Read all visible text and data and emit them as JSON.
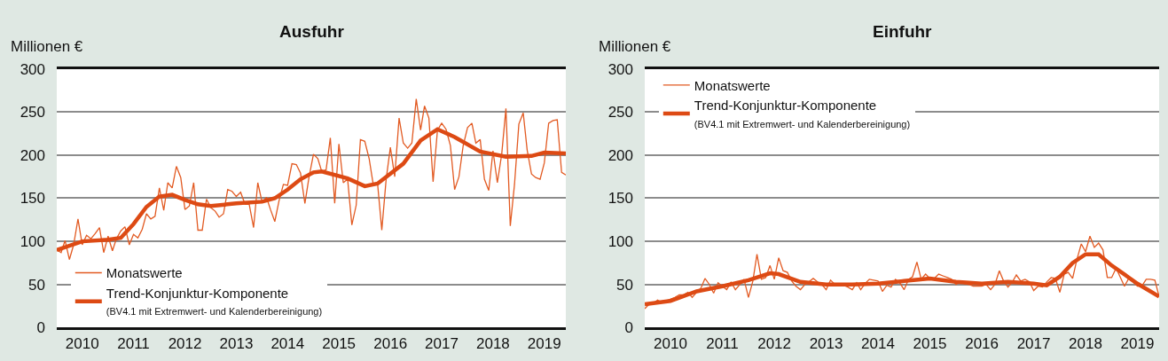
{
  "chart_data": [
    {
      "type": "line",
      "title": "Ausfuhr",
      "ylabel": "Millionen €",
      "legend": "bottom left",
      "grid": "y",
      "marker": "none",
      "line_style": "solid",
      "xlim": [
        "2010-01",
        "2019-12"
      ],
      "ylim": [
        0,
        300
      ],
      "yticks": [
        0,
        50,
        100,
        150,
        200,
        250,
        300
      ],
      "xticks": [
        {
          "value": "2010-07",
          "label": "2010"
        },
        {
          "value": "2011-07",
          "label": "2011"
        },
        {
          "value": "2012-07",
          "label": "2012"
        },
        {
          "value": "2013-07",
          "label": "2013"
        },
        {
          "value": "2014-07",
          "label": "2014"
        },
        {
          "value": "2015-07",
          "label": "2015"
        },
        {
          "value": "2016-07",
          "label": "2016"
        },
        {
          "value": "2017-07",
          "label": "2017"
        },
        {
          "value": "2018-07",
          "label": "2018"
        },
        {
          "value": "2019-07",
          "label": "2019"
        }
      ],
      "x": [
        "2010-01",
        "2010-02",
        "2010-03",
        "2010-04",
        "2010-05",
        "2010-06",
        "2010-07",
        "2010-08",
        "2010-09",
        "2010-10",
        "2010-11",
        "2010-12",
        "2011-01",
        "2011-02",
        "2011-03",
        "2011-04",
        "2011-05",
        "2011-06",
        "2011-07",
        "2011-08",
        "2011-09",
        "2011-10",
        "2011-11",
        "2011-12",
        "2012-01",
        "2012-02",
        "2012-03",
        "2012-04",
        "2012-05",
        "2012-06",
        "2012-07",
        "2012-08",
        "2012-09",
        "2012-10",
        "2012-11",
        "2012-12",
        "2013-01",
        "2013-02",
        "2013-03",
        "2013-04",
        "2013-05",
        "2013-06",
        "2013-07",
        "2013-08",
        "2013-09",
        "2013-10",
        "2013-11",
        "2013-12",
        "2014-01",
        "2014-02",
        "2014-03",
        "2014-04",
        "2014-05",
        "2014-06",
        "2014-07",
        "2014-08",
        "2014-09",
        "2014-10",
        "2014-11",
        "2014-12",
        "2015-01",
        "2015-02",
        "2015-03",
        "2015-04",
        "2015-05",
        "2015-06",
        "2015-07",
        "2015-08",
        "2015-09",
        "2015-10",
        "2015-11",
        "2015-12",
        "2016-01",
        "2016-02",
        "2016-03",
        "2016-04",
        "2016-05",
        "2016-06",
        "2016-07",
        "2016-08",
        "2016-09",
        "2016-10",
        "2016-11",
        "2016-12",
        "2017-01",
        "2017-02",
        "2017-03",
        "2017-04",
        "2017-05",
        "2017-06",
        "2017-07",
        "2017-08",
        "2017-09",
        "2017-10",
        "2017-11",
        "2017-12",
        "2018-01",
        "2018-02",
        "2018-03",
        "2018-04",
        "2018-05",
        "2018-06",
        "2018-07",
        "2018-08",
        "2018-09",
        "2018-10",
        "2018-11",
        "2018-12",
        "2019-01",
        "2019-02",
        "2019-03",
        "2019-04",
        "2019-05",
        "2019-06",
        "2019-07",
        "2019-08",
        "2019-09",
        "2019-10",
        "2019-11",
        "2019-12"
      ],
      "series": [
        {
          "name": "Monatswerte",
          "color": "#e25a22",
          "values": [
            90,
            87,
            101,
            79,
            96,
            126,
            96,
            107,
            103,
            109,
            116,
            87,
            106,
            89,
            103,
            112,
            117,
            96,
            108,
            104,
            114,
            132,
            126,
            129,
            162,
            136,
            168,
            162,
            187,
            174,
            137,
            141,
            168,
            113,
            113,
            149,
            139,
            135,
            128,
            132,
            160,
            158,
            152,
            157,
            143,
            143,
            116,
            168,
            145,
            151,
            137,
            123,
            147,
            166,
            165,
            190,
            189,
            179,
            144,
            175,
            201,
            196,
            181,
            183,
            220,
            144,
            213,
            168,
            172,
            119,
            142,
            218,
            216,
            196,
            166,
            167,
            113,
            172,
            209,
            175,
            243,
            214,
            208,
            214,
            265,
            229,
            257,
            243,
            169,
            229,
            237,
            230,
            211,
            160,
            175,
            211,
            232,
            237,
            214,
            218,
            172,
            159,
            205,
            168,
            201,
            254,
            118,
            166,
            236,
            249,
            206,
            178,
            174,
            172,
            191,
            237,
            240,
            241,
            180,
            177
          ]
        },
        {
          "name": "Trend-Konjunktur-Komponente\n(BV4.1 mit Extremwert- und Kalenderbereinigung)",
          "color": "#dd4a14",
          "x": [
            "2010-01",
            "2010-07",
            "2011-01",
            "2011-04",
            "2011-07",
            "2011-10",
            "2012-01",
            "2012-04",
            "2012-07",
            "2012-10",
            "2013-01",
            "2013-07",
            "2014-01",
            "2014-04",
            "2014-07",
            "2014-10",
            "2015-01",
            "2015-03",
            "2015-09",
            "2016-01",
            "2016-04",
            "2016-10",
            "2017-02",
            "2017-06",
            "2017-10",
            "2018-04",
            "2018-10",
            "2019-04",
            "2019-07",
            "2019-12"
          ],
          "values": [
            90,
            100,
            102,
            104,
            120,
            140,
            152,
            154,
            148,
            143,
            141,
            144,
            146,
            150,
            160,
            172,
            180,
            181,
            173,
            164,
            167,
            190,
            217,
            230,
            221,
            204,
            198,
            199,
            203,
            202
          ]
        }
      ]
    },
    {
      "type": "line",
      "title": "Einfuhr",
      "ylabel": "Millionen €",
      "legend": "top left",
      "grid": "y",
      "marker": "none",
      "line_style": "solid",
      "xlim": [
        "2010-01",
        "2019-12"
      ],
      "ylim": [
        0,
        300
      ],
      "yticks": [
        0,
        50,
        100,
        150,
        200,
        250,
        300
      ],
      "xticks": [
        {
          "value": "2010-07",
          "label": "2010"
        },
        {
          "value": "2011-07",
          "label": "2011"
        },
        {
          "value": "2012-07",
          "label": "2012"
        },
        {
          "value": "2013-07",
          "label": "2013"
        },
        {
          "value": "2014-07",
          "label": "2014"
        },
        {
          "value": "2015-07",
          "label": "2015"
        },
        {
          "value": "2016-07",
          "label": "2016"
        },
        {
          "value": "2017-07",
          "label": "2017"
        },
        {
          "value": "2018-07",
          "label": "2018"
        },
        {
          "value": "2019-07",
          "label": "2019"
        }
      ],
      "x": [
        "2010-01",
        "2010-02",
        "2010-03",
        "2010-04",
        "2010-05",
        "2010-06",
        "2010-07",
        "2010-08",
        "2010-09",
        "2010-10",
        "2010-11",
        "2010-12",
        "2011-01",
        "2011-02",
        "2011-03",
        "2011-04",
        "2011-05",
        "2011-06",
        "2011-07",
        "2011-08",
        "2011-09",
        "2011-10",
        "2011-11",
        "2011-12",
        "2012-01",
        "2012-02",
        "2012-03",
        "2012-04",
        "2012-05",
        "2012-06",
        "2012-07",
        "2012-08",
        "2012-09",
        "2012-10",
        "2012-11",
        "2012-12",
        "2013-01",
        "2013-02",
        "2013-03",
        "2013-04",
        "2013-05",
        "2013-06",
        "2013-07",
        "2013-08",
        "2013-09",
        "2013-10",
        "2013-11",
        "2013-12",
        "2014-01",
        "2014-02",
        "2014-03",
        "2014-04",
        "2014-05",
        "2014-06",
        "2014-07",
        "2014-08",
        "2014-09",
        "2014-10",
        "2014-11",
        "2014-12",
        "2015-01",
        "2015-02",
        "2015-03",
        "2015-04",
        "2015-05",
        "2015-06",
        "2015-07",
        "2015-08",
        "2015-09",
        "2015-10",
        "2015-11",
        "2015-12",
        "2016-01",
        "2016-02",
        "2016-03",
        "2016-04",
        "2016-05",
        "2016-06",
        "2016-07",
        "2016-08",
        "2016-09",
        "2016-10",
        "2016-11",
        "2016-12",
        "2017-01",
        "2017-02",
        "2017-03",
        "2017-04",
        "2017-05",
        "2017-06",
        "2017-07",
        "2017-08",
        "2017-09",
        "2017-10",
        "2017-11",
        "2017-12",
        "2018-01",
        "2018-02",
        "2018-03",
        "2018-04",
        "2018-05",
        "2018-06",
        "2018-07",
        "2018-08",
        "2018-09",
        "2018-10",
        "2018-11",
        "2018-12",
        "2019-01",
        "2019-02",
        "2019-03",
        "2019-04",
        "2019-05",
        "2019-06",
        "2019-07",
        "2019-08",
        "2019-09",
        "2019-10",
        "2019-11",
        "2019-12"
      ],
      "series": [
        {
          "name": "Monatswerte",
          "color": "#e25a22",
          "values": [
            22,
            27,
            28,
            32,
            29,
            31,
            33,
            35,
            38,
            38,
            41,
            35,
            41,
            46,
            57,
            50,
            40,
            52,
            48,
            44,
            53,
            44,
            50,
            56,
            35,
            54,
            85,
            56,
            58,
            72,
            56,
            81,
            66,
            64,
            54,
            48,
            44,
            50,
            53,
            57,
            53,
            50,
            44,
            55,
            50,
            49,
            49,
            47,
            44,
            52,
            44,
            51,
            56,
            55,
            54,
            42,
            49,
            47,
            56,
            52,
            44,
            56,
            59,
            76,
            56,
            62,
            57,
            57,
            62,
            60,
            58,
            56,
            50,
            53,
            51,
            50,
            48,
            48,
            48,
            50,
            44,
            50,
            66,
            54,
            47,
            53,
            61,
            54,
            56,
            53,
            43,
            48,
            47,
            53,
            58,
            57,
            41,
            62,
            64,
            57,
            79,
            97,
            88,
            106,
            93,
            98,
            90,
            58,
            58,
            69,
            59,
            48,
            57,
            53,
            48,
            48,
            56,
            56,
            55,
            36
          ]
        },
        {
          "name": "Trend-Konjunktur-Komponente\n(BV4.1 mit Extremwert- und Kalenderbereinigung)",
          "color": "#dd4a14",
          "x": [
            "2010-01",
            "2010-07",
            "2011-01",
            "2011-07",
            "2012-01",
            "2012-06",
            "2012-08",
            "2013-01",
            "2013-07",
            "2014-01",
            "2014-07",
            "2015-01",
            "2015-07",
            "2016-01",
            "2016-07",
            "2017-01",
            "2017-07",
            "2017-10",
            "2018-01",
            "2018-04",
            "2018-07",
            "2018-10",
            "2019-01",
            "2019-07",
            "2019-12"
          ],
          "values": [
            27,
            31,
            42,
            48,
            55,
            63,
            62,
            53,
            50,
            50,
            51,
            54,
            57,
            53,
            51,
            53,
            51,
            49,
            59,
            75,
            85,
            85,
            72,
            51,
            36
          ]
        }
      ]
    }
  ]
}
